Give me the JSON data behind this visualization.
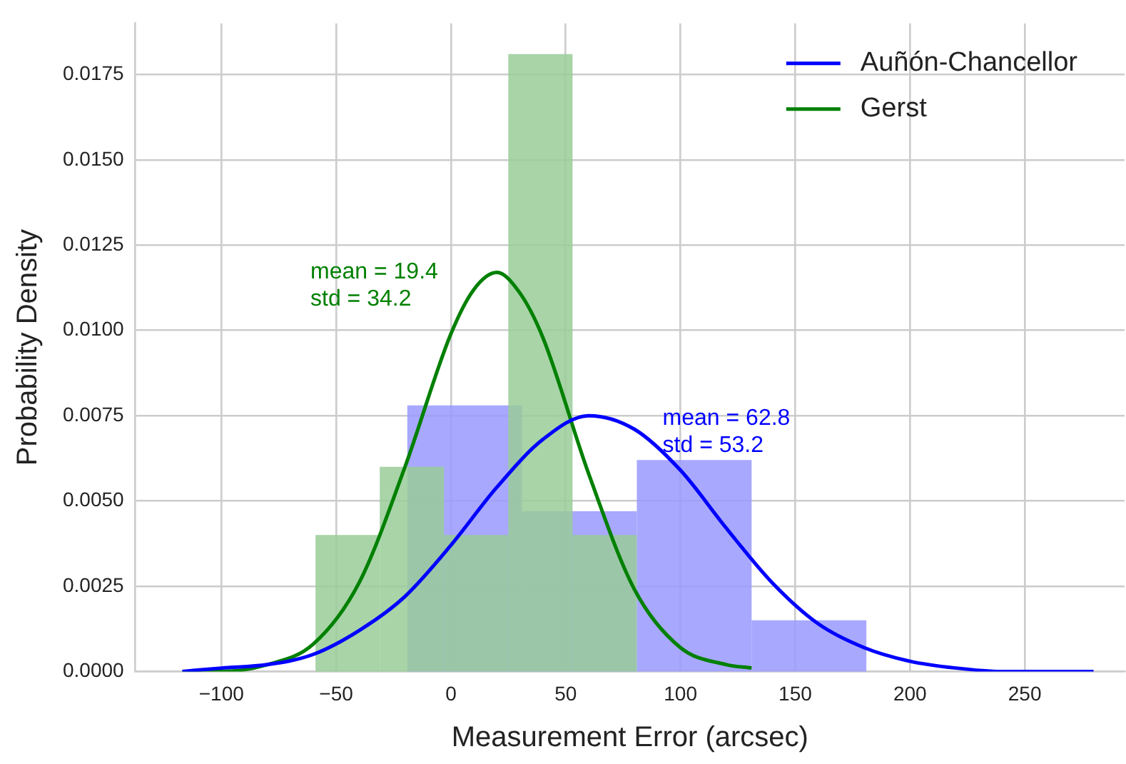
{
  "chart_data": {
    "type": "histogram",
    "xlabel": "Measurement Error (arcsec)",
    "ylabel": "Probability Density",
    "xlim": [
      -137.5,
      293.5
    ],
    "ylim": [
      0,
      0.019
    ],
    "xticks": [
      {
        "value": -100,
        "label": "−100"
      },
      {
        "value": -50,
        "label": "−50"
      },
      0,
      50,
      100,
      150,
      200,
      250
    ],
    "yticks": [
      {
        "value": 0,
        "label": "0.0000"
      },
      {
        "value": 0.0025,
        "label": "0.0025"
      },
      {
        "value": 0.005,
        "label": "0.0050"
      },
      {
        "value": 0.0075,
        "label": "0.0075"
      },
      {
        "value": 0.01,
        "label": "0.0100"
      },
      {
        "value": 0.0125,
        "label": "0.0125"
      },
      {
        "value": 0.015,
        "label": "0.0150"
      },
      {
        "value": 0.0175,
        "label": "0.0175"
      }
    ],
    "grid": true,
    "legend": "top right",
    "series": [
      {
        "color": "#9999ff",
        "bins": [
          -19,
          31,
          81,
          131,
          181
        ],
        "values": [
          0.0078,
          0.0047,
          0.0062,
          0.0015
        ]
      },
      {
        "color": "#99cc99",
        "bins": [
          -59,
          -31,
          -3,
          25,
          53,
          81
        ],
        "values": [
          0.004,
          0.006,
          0.004,
          0.0181,
          0.004
        ]
      },
      {
        "type": "line",
        "name": "Auñón-Chancellor",
        "color": "#0000ff",
        "x": [
          -117,
          -100,
          -80,
          -60,
          -40,
          -20,
          0,
          20,
          40,
          60,
          80,
          100,
          120,
          140,
          160,
          180,
          200,
          220,
          240,
          260,
          280
        ],
        "values": [
          0,
          0.0001,
          0.0002,
          0.0005,
          0.0012,
          0.0022,
          0.0037,
          0.0054,
          0.0068,
          0.0075,
          0.0071,
          0.0059,
          0.0042,
          0.0026,
          0.0014,
          0.0007,
          0.0003,
          0.0001,
          0,
          0,
          0
        ]
      },
      {
        "type": "line",
        "name": "Gerst",
        "color": "#008000",
        "x": [
          -117,
          -100,
          -80,
          -60,
          -40,
          -20,
          0,
          10,
          20,
          30,
          40,
          60,
          80,
          100,
          120,
          131
        ],
        "values": [
          0,
          0,
          0.0002,
          0.0008,
          0.0026,
          0.006,
          0.0099,
          0.0112,
          0.0117,
          0.0111,
          0.0098,
          0.0058,
          0.0024,
          0.0007,
          0.0002,
          0.0001
        ]
      }
    ],
    "annotations": [
      "mean = 62.8\nstd = 53.2",
      "mean = 19.4\nstd = 34.2"
    ]
  }
}
